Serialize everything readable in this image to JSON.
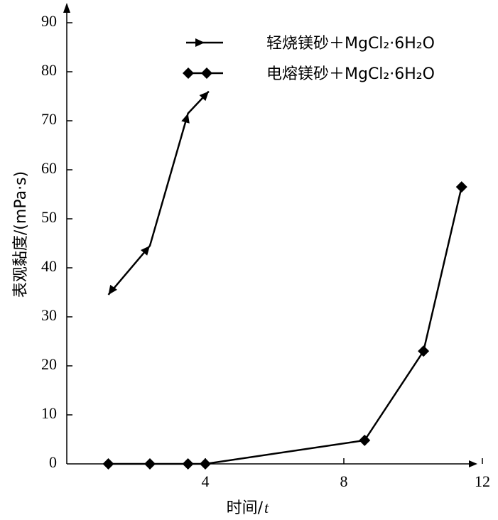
{
  "chart_data": {
    "type": "line",
    "xlabel": "时间/",
    "xlabel_var": "t",
    "ylabel": "表观黏度/(mPa·s)",
    "x_ticks": [
      4,
      8,
      12
    ],
    "y_ticks": [
      0,
      10,
      20,
      30,
      40,
      50,
      60,
      70,
      80,
      90
    ],
    "y_tick_labels": [
      "0",
      "10",
      "20",
      "30",
      "40",
      "50",
      "60",
      "70",
      "80",
      "90"
    ],
    "x_tick_labels": [
      "4",
      "8",
      "12"
    ],
    "xlim": [
      0,
      13.5
    ],
    "ylim": [
      0,
      94
    ],
    "legend_position": "top-right",
    "series": [
      {
        "name": "轻烧镁砂＋MgCl₂·6H₂O",
        "marker": "arrow",
        "color": "#000000",
        "x": [
          1.2,
          2.4,
          3.5,
          4.1
        ],
        "y": [
          34.5,
          44.5,
          71.5,
          76
        ]
      },
      {
        "name": "电熔镁砂＋MgCl₂·6H₂O",
        "marker": "diamond",
        "color": "#000000",
        "x": [
          1.2,
          2.4,
          3.5,
          4.0,
          8.6,
          10.3,
          11.4
        ],
        "y": [
          0,
          0,
          0,
          0,
          4.8,
          23,
          56.5
        ]
      }
    ]
  }
}
